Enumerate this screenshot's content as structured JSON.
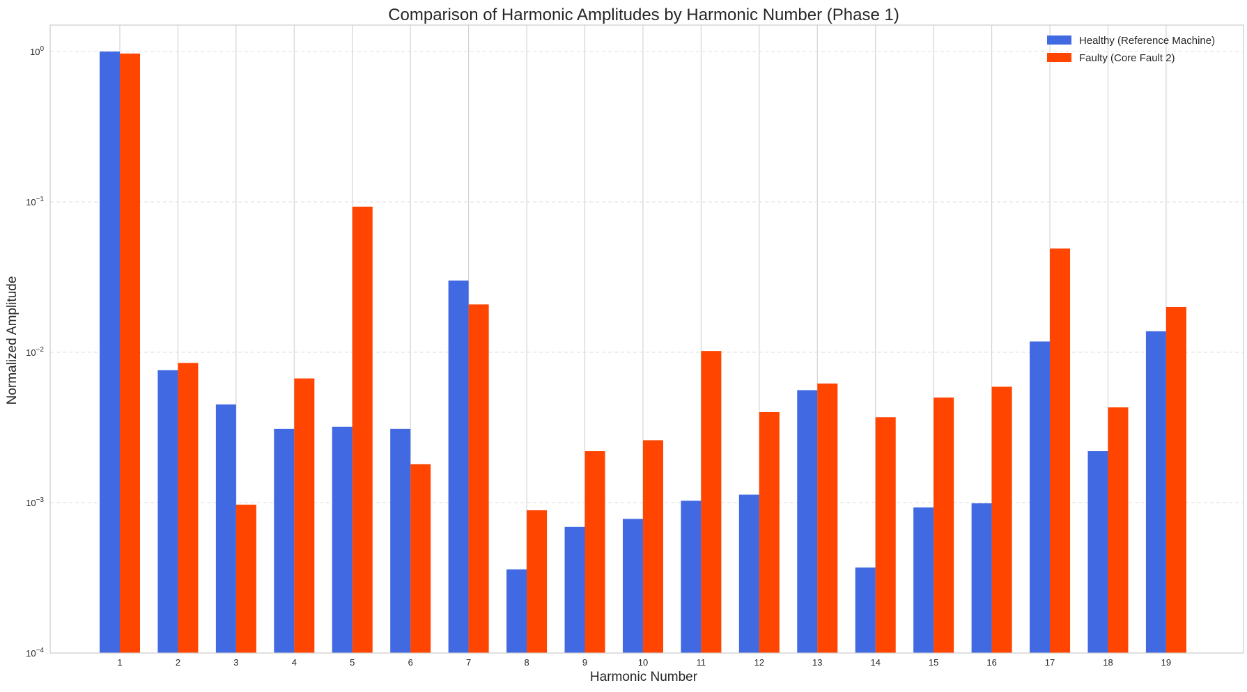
{
  "chart_data": {
    "type": "bar",
    "title": "Comparison of Harmonic Amplitudes by Harmonic Number (Phase 1)",
    "xlabel": "Harmonic Number",
    "ylabel": "Normalized Amplitude",
    "yscale": "log",
    "ylim": [
      0.0001,
      1.5
    ],
    "yticks": [
      {
        "value": 0.0001,
        "base": "10",
        "exp": "−4"
      },
      {
        "value": 0.001,
        "base": "10",
        "exp": "−3"
      },
      {
        "value": 0.01,
        "base": "10",
        "exp": "−2"
      },
      {
        "value": 0.1,
        "base": "10",
        "exp": "−1"
      },
      {
        "value": 1,
        "base": "10",
        "exp": "0"
      }
    ],
    "categories": [
      "1",
      "2",
      "3",
      "4",
      "5",
      "6",
      "7",
      "8",
      "9",
      "10",
      "11",
      "12",
      "13",
      "14",
      "15",
      "16",
      "17",
      "18",
      "19"
    ],
    "grid": true,
    "legend_position": "top-right",
    "series": [
      {
        "name": "Healthy (Reference Machine)",
        "color": "#4169E1",
        "values": [
          1.0,
          0.0076,
          0.0045,
          0.0031,
          0.0032,
          0.0031,
          0.03,
          0.00036,
          0.00069,
          0.00078,
          0.00103,
          0.00113,
          0.0056,
          0.00037,
          0.00093,
          0.00099,
          0.0118,
          0.0022,
          0.0138
        ]
      },
      {
        "name": "Faulty (Core Fault 2)",
        "color": "#FF4500",
        "values": [
          0.97,
          0.0085,
          0.00097,
          0.0067,
          0.093,
          0.0018,
          0.0208,
          0.00089,
          0.0022,
          0.0026,
          0.0102,
          0.004,
          0.0062,
          0.0037,
          0.005,
          0.0059,
          0.049,
          0.0043,
          0.02
        ]
      }
    ]
  }
}
